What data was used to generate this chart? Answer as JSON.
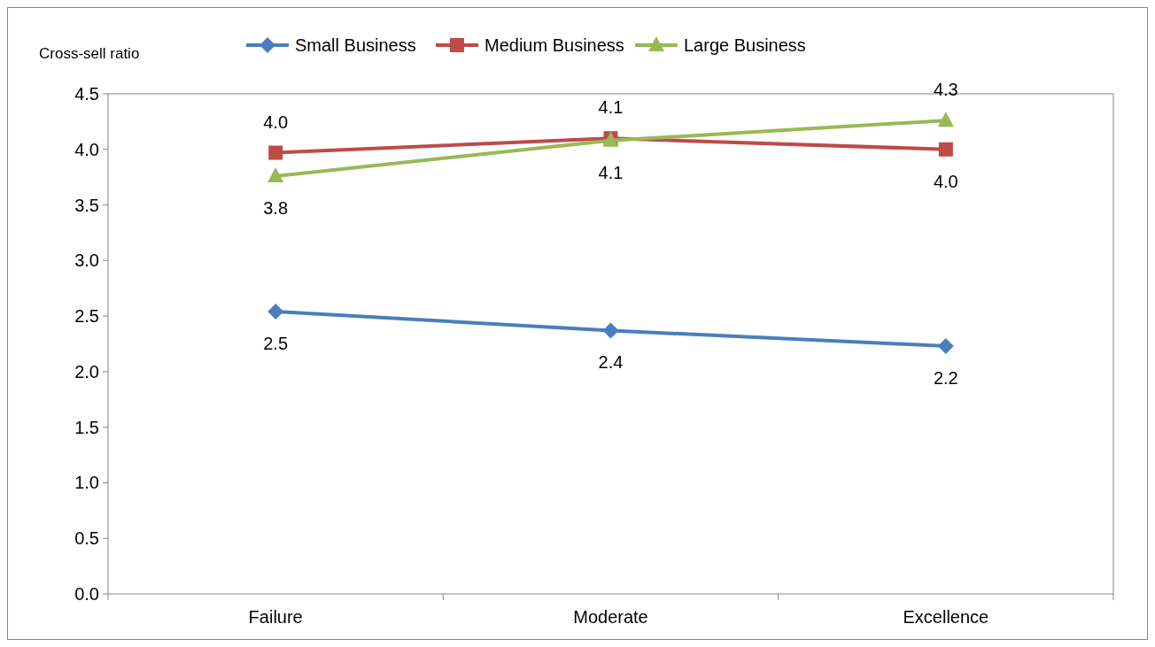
{
  "chart_data": {
    "type": "line",
    "ylabel": "Cross-sell ratio",
    "categories": [
      "Failure",
      "Moderate",
      "Excellence"
    ],
    "series": [
      {
        "name": "Small Business",
        "color": "#4a7ebb",
        "marker": "diamond",
        "values": [
          2.54,
          2.37,
          2.23
        ],
        "value_labels": [
          "2.5",
          "2.4",
          "2.2"
        ]
      },
      {
        "name": "Medium Business",
        "color": "#be4b48",
        "marker": "square",
        "values": [
          3.97,
          4.1,
          4.0
        ],
        "value_labels": [
          "4.0",
          "4.1",
          "4.0"
        ]
      },
      {
        "name": "Large Business",
        "color": "#98b954",
        "marker": "triangle",
        "values": [
          3.76,
          4.08,
          4.26
        ],
        "value_labels": [
          "3.8",
          "4.1",
          "4.3"
        ]
      }
    ],
    "ylim": [
      0,
      4.5
    ],
    "yticks": [
      {
        "value": 0,
        "label": "0.0"
      },
      {
        "value": 0.5,
        "label": "0.5"
      },
      {
        "value": 1,
        "label": "1.0"
      },
      {
        "value": 1.5,
        "label": "1.5"
      },
      {
        "value": 2,
        "label": "2.0"
      },
      {
        "value": 2.5,
        "label": "2.5"
      },
      {
        "value": 3,
        "label": "3.0"
      },
      {
        "value": 3.5,
        "label": "3.5"
      },
      {
        "value": 4,
        "label": "4.0"
      },
      {
        "value": 4.5,
        "label": "4.5"
      }
    ],
    "grid": false,
    "legend": "top"
  }
}
